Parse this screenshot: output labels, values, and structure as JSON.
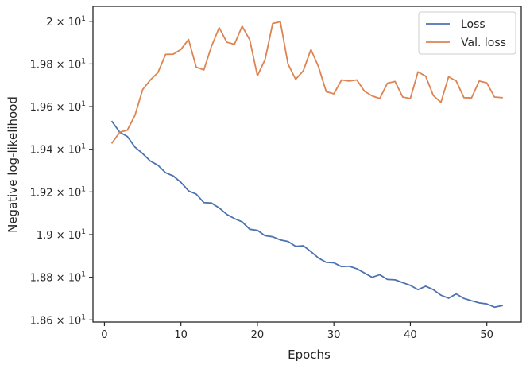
{
  "chart_data": {
    "type": "line",
    "title": "",
    "xlabel": "Epochs",
    "ylabel": "Negative log-likelihood",
    "xlim": [
      -1.5,
      54.5
    ],
    "ylim": [
      18.59,
      20.07
    ],
    "grid": false,
    "legend_position": "top-right",
    "x_ticks": [
      {
        "value": 0,
        "label": "0"
      },
      {
        "value": 10,
        "label": "10"
      },
      {
        "value": 20,
        "label": "20"
      },
      {
        "value": 30,
        "label": "30"
      },
      {
        "value": 40,
        "label": "40"
      },
      {
        "value": 50,
        "label": "50"
      }
    ],
    "y_ticks": [
      {
        "value": 18.6,
        "mantissa": "1.86",
        "sep": "×",
        "base": "10",
        "exp": "1"
      },
      {
        "value": 18.8,
        "mantissa": "1.88",
        "sep": "×",
        "base": "10",
        "exp": "1"
      },
      {
        "value": 19.0,
        "mantissa": "1.9",
        "sep": "×",
        "base": "10",
        "exp": "1"
      },
      {
        "value": 19.2,
        "mantissa": "1.92",
        "sep": "×",
        "base": "10",
        "exp": "1"
      },
      {
        "value": 19.4,
        "mantissa": "1.94",
        "sep": "×",
        "base": "10",
        "exp": "1"
      },
      {
        "value": 19.6,
        "mantissa": "1.96",
        "sep": "×",
        "base": "10",
        "exp": "1"
      },
      {
        "value": 19.8,
        "mantissa": "1.98",
        "sep": "×",
        "base": "10",
        "exp": "1"
      },
      {
        "value": 20.0,
        "mantissa": "2",
        "sep": "×",
        "base": "10",
        "exp": "1"
      }
    ],
    "x": [
      1,
      2,
      3,
      4,
      5,
      6,
      7,
      8,
      9,
      10,
      11,
      12,
      13,
      14,
      15,
      16,
      17,
      18,
      19,
      20,
      21,
      22,
      23,
      24,
      25,
      26,
      27,
      28,
      29,
      30,
      31,
      32,
      33,
      34,
      35,
      36,
      37,
      38,
      39,
      40,
      41,
      42,
      43,
      44,
      45,
      46,
      47,
      48,
      49,
      50,
      51,
      52
    ],
    "series": [
      {
        "name": "Loss",
        "color": "#4c72b0",
        "values": [
          19.53,
          19.48,
          19.46,
          19.41,
          19.38,
          19.345,
          19.325,
          19.29,
          19.275,
          19.245,
          19.205,
          19.19,
          19.15,
          19.148,
          19.125,
          19.095,
          19.075,
          19.06,
          19.025,
          19.02,
          18.995,
          18.99,
          18.975,
          18.968,
          18.945,
          18.948,
          18.92,
          18.89,
          18.87,
          18.868,
          18.85,
          18.852,
          18.84,
          18.82,
          18.8,
          18.812,
          18.79,
          18.788,
          18.775,
          18.762,
          18.742,
          18.758,
          18.742,
          18.716,
          18.702,
          18.722,
          18.701,
          18.69,
          18.68,
          18.675,
          18.66,
          18.667
        ]
      },
      {
        "name": "Val. loss",
        "color": "#dd8452",
        "values": [
          19.43,
          19.48,
          19.49,
          19.56,
          19.68,
          19.725,
          19.76,
          19.845,
          19.846,
          19.868,
          19.915,
          19.785,
          19.772,
          19.883,
          19.97,
          19.902,
          19.892,
          19.977,
          19.913,
          19.745,
          19.82,
          19.99,
          19.998,
          19.8,
          19.728,
          19.768,
          19.868,
          19.786,
          19.67,
          19.66,
          19.725,
          19.72,
          19.725,
          19.672,
          19.65,
          19.638,
          19.71,
          19.718,
          19.645,
          19.638,
          19.763,
          19.743,
          19.652,
          19.62,
          19.74,
          19.72,
          19.642,
          19.641,
          19.72,
          19.711,
          19.645,
          19.642
        ]
      }
    ]
  }
}
